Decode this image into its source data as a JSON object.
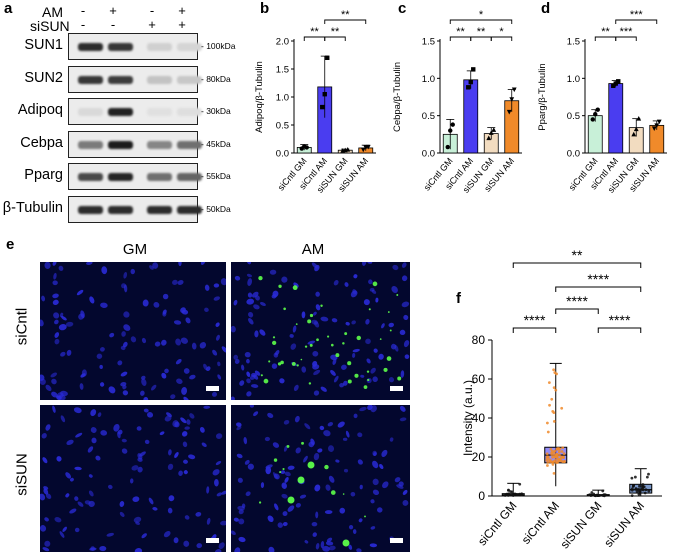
{
  "panels": {
    "a": {
      "label": "a",
      "treatments": [
        {
          "name": "AM",
          "signs": [
            "-",
            "+",
            "-",
            "+"
          ]
        },
        {
          "name": "siSUN",
          "signs": [
            "-",
            "-",
            "+",
            "+"
          ]
        }
      ],
      "bands": [
        {
          "protein": "SUN1",
          "mw": "100kDa",
          "intensity": [
            0.85,
            0.8,
            0.12,
            0.1
          ]
        },
        {
          "protein": "SUN2",
          "mw": "80kDa",
          "intensity": [
            0.8,
            0.78,
            0.18,
            0.16
          ]
        },
        {
          "protein": "Adipoq",
          "mw": "30kDa",
          "intensity": [
            0.08,
            0.9,
            0.05,
            0.06
          ]
        },
        {
          "protein": "Cebpa",
          "mw": "45kDa",
          "intensity": [
            0.5,
            0.92,
            0.45,
            0.55
          ]
        },
        {
          "protein": "Pparg",
          "mw": "55kDa",
          "intensity": [
            0.72,
            0.88,
            0.55,
            0.6
          ]
        },
        {
          "protein": "β-Tubulin",
          "mw": "50kDa",
          "intensity": [
            0.85,
            0.85,
            0.85,
            0.85
          ]
        }
      ]
    },
    "b": {
      "label": "b"
    },
    "c": {
      "label": "c"
    },
    "d": {
      "label": "d"
    },
    "e": {
      "label": "e",
      "columns": [
        "GM",
        "AM"
      ],
      "rows": [
        "siCntl",
        "siSUN"
      ]
    },
    "f": {
      "label": "f"
    }
  },
  "chart_data": [
    {
      "panel": "b",
      "type": "bar",
      "categories": [
        "siCntl GM",
        "siCntl AM",
        "siSUN GM",
        "siSUN AM"
      ],
      "values": [
        0.1,
        1.18,
        0.05,
        0.09
      ],
      "errors": [
        0.05,
        0.55,
        0.02,
        0.05
      ],
      "points": [
        [
          0.08,
          0.12,
          0.1
        ],
        [
          0.82,
          1.05,
          1.7
        ],
        [
          0.04,
          0.05,
          0.06
        ],
        [
          0.06,
          0.1,
          0.11
        ]
      ],
      "ylabel": "Adipoq/β-Tubulin",
      "ylim": [
        0,
        2.0
      ],
      "yticks": [
        "0.0",
        "0.5",
        "1.0",
        "1.5",
        "2.0"
      ],
      "colors": [
        "#c8f0d8",
        "#4a3df0",
        "#f2dcc0",
        "#f08a2a"
      ],
      "significance": [
        {
          "from": 0,
          "to": 1,
          "label": "**",
          "level": 0
        },
        {
          "from": 1,
          "to": 2,
          "label": "**",
          "level": 0
        },
        {
          "from": 1,
          "to": 3,
          "label": "**",
          "level": 1
        }
      ]
    },
    {
      "panel": "c",
      "type": "bar",
      "categories": [
        "siCntl GM",
        "siCntl AM",
        "siSUN GM",
        "siSUN AM"
      ],
      "values": [
        0.25,
        0.98,
        0.26,
        0.7
      ],
      "errors": [
        0.2,
        0.12,
        0.08,
        0.15
      ],
      "points": [
        [
          0.08,
          0.3,
          0.38
        ],
        [
          0.88,
          0.95,
          1.12
        ],
        [
          0.2,
          0.27,
          0.31
        ],
        [
          0.55,
          0.72,
          0.85
        ]
      ],
      "ylabel": "Cebpa/β-Tubulin",
      "ylim": [
        0,
        1.5
      ],
      "yticks": [
        "0.0",
        "0.5",
        "1.0",
        "1.5"
      ],
      "colors": [
        "#c8f0d8",
        "#4a3df0",
        "#f2dcc0",
        "#f08a2a"
      ],
      "significance": [
        {
          "from": 0,
          "to": 1,
          "label": "**",
          "level": 0
        },
        {
          "from": 1,
          "to": 2,
          "label": "**",
          "level": 0
        },
        {
          "from": 2,
          "to": 3,
          "label": "*",
          "level": 0
        },
        {
          "from": 0,
          "to": 3,
          "label": "*",
          "level": 1
        }
      ]
    },
    {
      "panel": "d",
      "type": "bar",
      "categories": [
        "siCntl GM",
        "siCntl AM",
        "siSUN GM",
        "siSUN AM"
      ],
      "values": [
        0.5,
        0.93,
        0.34,
        0.37
      ],
      "errors": [
        0.08,
        0.04,
        0.12,
        0.06
      ],
      "points": [
        [
          0.45,
          0.52,
          0.58
        ],
        [
          0.9,
          0.93,
          0.96
        ],
        [
          0.25,
          0.32,
          0.46
        ],
        [
          0.33,
          0.37,
          0.42
        ]
      ],
      "ylabel": "Pparg/β-Tubulin",
      "ylim": [
        0,
        1.5
      ],
      "yticks": [
        "0.0",
        "0.5",
        "1.0",
        "1.5"
      ],
      "colors": [
        "#c8f0d8",
        "#4a3df0",
        "#f2dcc0",
        "#f08a2a"
      ],
      "significance": [
        {
          "from": 0,
          "to": 1,
          "label": "**",
          "level": 0
        },
        {
          "from": 1,
          "to": 2,
          "label": "***",
          "level": 0
        },
        {
          "from": 1,
          "to": 3,
          "label": "***",
          "level": 1
        }
      ]
    },
    {
      "panel": "f",
      "type": "box",
      "categories": [
        "siCntl GM",
        "siCntl AM",
        "siSUN GM",
        "siSUN AM"
      ],
      "boxes": [
        {
          "min": 0,
          "q1": 0.2,
          "median": 0.6,
          "q3": 1.2,
          "max": 6.5
        },
        {
          "min": 5,
          "q1": 17,
          "median": 21,
          "q3": 25,
          "max": 68
        },
        {
          "min": 0,
          "q1": 0.1,
          "median": 0.3,
          "q3": 0.7,
          "max": 3
        },
        {
          "min": 0,
          "q1": 1.5,
          "median": 3.2,
          "q3": 6,
          "max": 14
        }
      ],
      "ylabel": "Intensity (a.u.)",
      "ylim": [
        0,
        80
      ],
      "yticks": [
        "0",
        "20",
        "40",
        "60",
        "80"
      ],
      "colors": [
        "#c8f0d8",
        "#4a3df0",
        "#f2dcc0",
        "#1e4fa0"
      ],
      "significance": [
        {
          "from": 0,
          "to": 1,
          "label": "****",
          "level": 0
        },
        {
          "from": 2,
          "to": 3,
          "label": "****",
          "level": 0
        },
        {
          "from": 1,
          "to": 2,
          "label": "****",
          "level": 1
        },
        {
          "from": 1,
          "to": 3,
          "label": "****",
          "level": 2
        },
        {
          "from": 0,
          "to": 3,
          "label": "**",
          "level": 3
        }
      ]
    }
  ]
}
